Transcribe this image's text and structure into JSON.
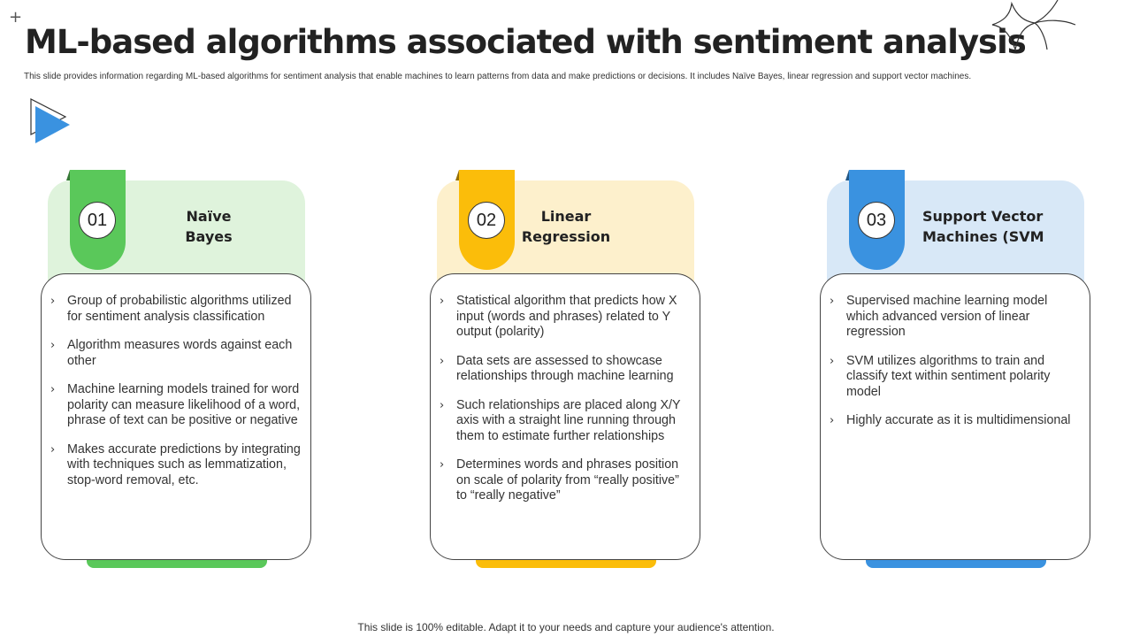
{
  "title": "ML-based algorithms associated with sentiment analysis",
  "subtitle": "This slide provides information regarding ML-based algorithms for sentiment analysis that enable machines to learn patterns from data and make predictions or decisions. It includes Naïve Bayes, linear regression and support vector machines.",
  "footer": "This slide is 100% editable. Adapt it to your needs and capture your audience's attention.",
  "colors": {
    "green": "#5ac85a",
    "green_light": "#dff3dc",
    "yellow": "#fbbd0a",
    "yellow_light": "#fdf0cc",
    "blue": "#3a92e0",
    "blue_light": "#d8e8f7",
    "play_icon": "#3a92e0"
  },
  "icons": {
    "corner": "plus-icon",
    "decoration": "sparkle-star-icon",
    "play": "play-icon",
    "bullet": "chevron-right-icon"
  },
  "cards": [
    {
      "number": "01",
      "title_line1": "Naïve",
      "title_line2": "Bayes",
      "color_key": "green",
      "bullets": [
        "Group of probabilistic algorithms utilized for sentiment analysis classification",
        "Algorithm measures words against each other",
        "Machine learning models trained for word polarity can measure likelihood of a word, phrase of text can be positive or negative",
        "Makes accurate predictions by integrating with techniques such as lemmatization, stop-word removal, etc."
      ]
    },
    {
      "number": "02",
      "title_line1": "Linear",
      "title_line2": "Regression",
      "color_key": "yellow",
      "bullets": [
        "Statistical algorithm that predicts how X input (words and phrases) related to Y output (polarity)",
        "Data sets are assessed to showcase relationships through machine learning",
        "Such relationships are placed along X/Y axis with a straight line running through them to estimate further relationships",
        "Determines words and phrases position on scale of polarity from “really positive” to “really negative”"
      ]
    },
    {
      "number": "03",
      "title_line1": "Support Vector",
      "title_line2": "Machines (SVM",
      "color_key": "blue",
      "bullets": [
        "Supervised machine learning model which advanced version of linear regression",
        "SVM utilizes algorithms to train and classify text within sentiment polarity model",
        "Highly accurate as it is multidimensional"
      ]
    }
  ]
}
